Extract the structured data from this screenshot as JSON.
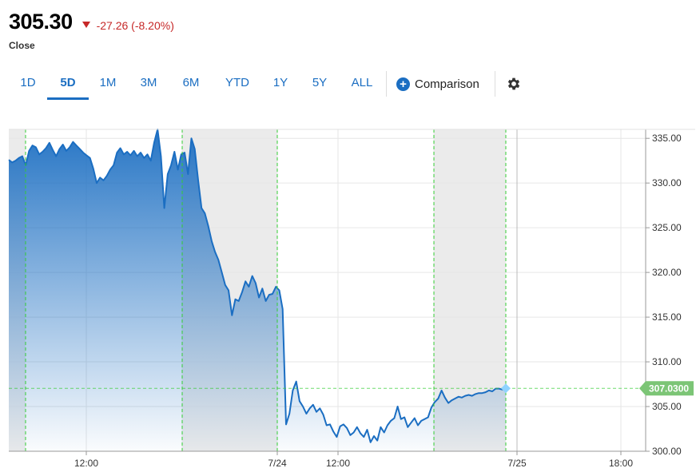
{
  "quote": {
    "price": "305.30",
    "change": "-27.26 (-8.20%)",
    "session_label": "Close"
  },
  "toolbar": {
    "ranges": [
      {
        "label": "1D",
        "active": false
      },
      {
        "label": "5D",
        "active": true
      },
      {
        "label": "1M",
        "active": false
      },
      {
        "label": "3M",
        "active": false
      },
      {
        "label": "6M",
        "active": false
      },
      {
        "label": "YTD",
        "active": false
      },
      {
        "label": "1Y",
        "active": false
      },
      {
        "label": "5Y",
        "active": false
      },
      {
        "label": "ALL",
        "active": false
      }
    ],
    "comparison_label": "Comparison",
    "settings_icon": "gear-icon"
  },
  "colors": {
    "line": "#1b6ec2",
    "down": "#c62828",
    "last_price_badge": "#7cc576",
    "session_divider": "#33cc33"
  },
  "chart_data": {
    "type": "area",
    "ylim": [
      300,
      336
    ],
    "y_ticks": [
      "335.00",
      "330.00",
      "325.00",
      "320.00",
      "315.00",
      "310.00",
      "305.00",
      "300.00"
    ],
    "x_ticks": [
      "12:00",
      "7/24",
      "12:00",
      "7/25",
      "18:00"
    ],
    "last_value_label": "307.0300",
    "grid": true,
    "series": [
      {
        "values": [
          332.6,
          332.3,
          332.5,
          332.8,
          333.0,
          332.0,
          333.6,
          334.2,
          334.0,
          333.2,
          333.5,
          333.9,
          334.5,
          333.7,
          333.0,
          333.8,
          334.3,
          333.6,
          334.0,
          334.6,
          334.2,
          333.8,
          333.4,
          333.1,
          332.8,
          331.6,
          330.0,
          330.6,
          330.3,
          330.8,
          331.5,
          332.0,
          333.4,
          333.9,
          333.2,
          333.5,
          333.1,
          333.6,
          333.0,
          333.4,
          332.8,
          333.2,
          332.5,
          334.5,
          336.0,
          333.0,
          327.2,
          331.0,
          332.0,
          333.5,
          331.5,
          333.2,
          333.4,
          331.0,
          335.0,
          333.8,
          330.3,
          327.2,
          326.6,
          325.2,
          323.5,
          322.3,
          321.4,
          320.0,
          318.6,
          318.0,
          315.2,
          317.0,
          316.8,
          317.8,
          319.0,
          318.4,
          319.6,
          318.8,
          317.2,
          318.2,
          316.8,
          317.5,
          317.6,
          318.4,
          318.0,
          315.9,
          303.0,
          304.2,
          306.8,
          307.8,
          305.6,
          305.0,
          304.2,
          304.8,
          305.2,
          304.4,
          304.8,
          304.1,
          302.9,
          303.0,
          302.2,
          301.6,
          302.8,
          303.0,
          302.6,
          301.8,
          302.1,
          302.7,
          302.0,
          301.6,
          302.4,
          301.0,
          301.7,
          301.2,
          302.7,
          302.1,
          302.9,
          303.4,
          303.7,
          305.0,
          303.6,
          303.8,
          302.7,
          303.2,
          303.7,
          302.9,
          303.4,
          303.6,
          303.8,
          304.9,
          305.5,
          305.9,
          306.8,
          306.0,
          305.4,
          305.7,
          305.9,
          306.1,
          306.0,
          306.2,
          306.3,
          306.2,
          306.4,
          306.5,
          306.5,
          306.6,
          306.8,
          306.7,
          307.0,
          307.0,
          306.9,
          307.03
        ]
      }
    ]
  }
}
